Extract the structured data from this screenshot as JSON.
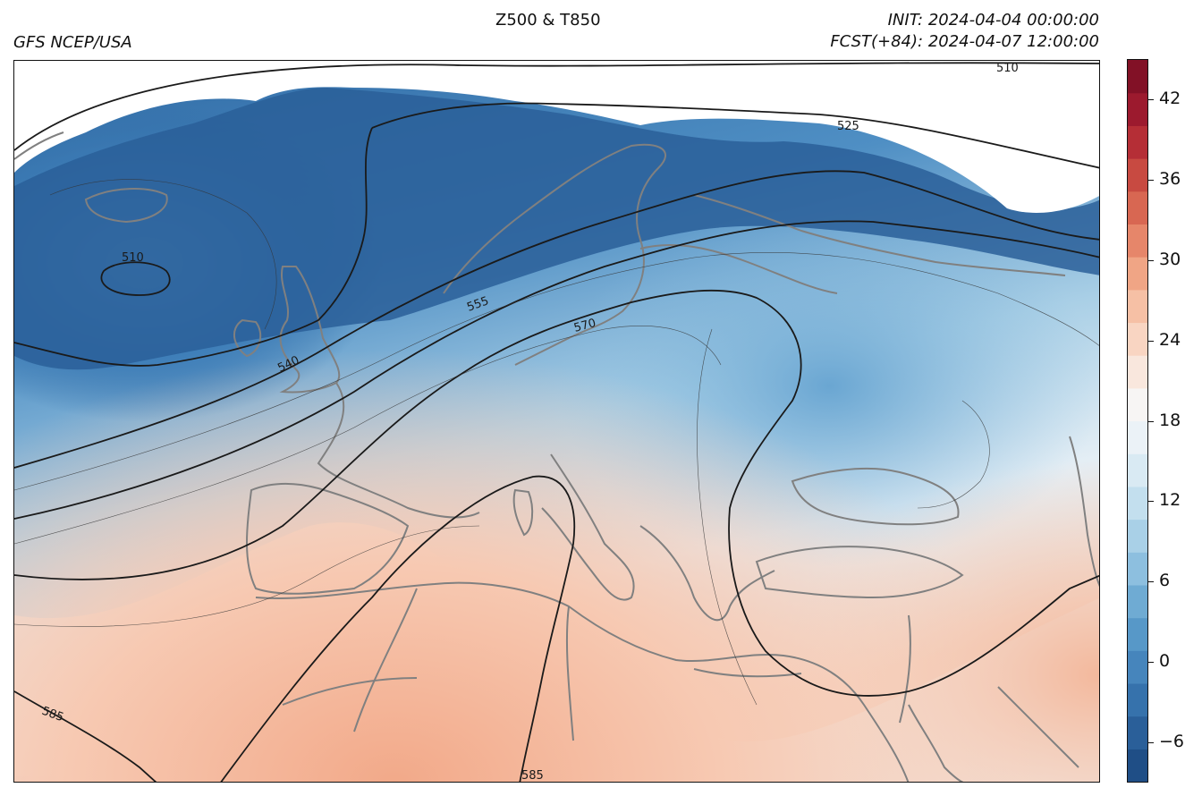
{
  "header": {
    "center_title": "Z500 & T850",
    "left_title": "GFS NCEP/USA",
    "init": "INIT: 2024-04-04 00:00:00",
    "forecast": "FCST(+84): 2024-04-07 12:00:00"
  },
  "colorbar": {
    "ticks": [
      "−6",
      "0",
      "6",
      "12",
      "18",
      "24",
      "30",
      "36",
      "42"
    ],
    "range": [
      -9,
      45
    ],
    "colors": [
      "#1f4e86",
      "#2a5f99",
      "#3672ac",
      "#4685bc",
      "#5798c8",
      "#6fabd3",
      "#8dbfdf",
      "#a9d0e7",
      "#c3dfee",
      "#d9eaf3",
      "#ebf2f7",
      "#f7f5f4",
      "#f9e7dd",
      "#f9d5c2",
      "#f6c0a5",
      "#f0a585",
      "#e6866a",
      "#d86752",
      "#c84a41",
      "#b52e36",
      "#9c1a2e",
      "#821126"
    ]
  },
  "contours": {
    "labels": [
      "510",
      "525",
      "510",
      "555",
      "570",
      "540",
      "585",
      "585"
    ]
  },
  "colors": {
    "contour": "#1a1a1a",
    "coastline": "#808080"
  }
}
